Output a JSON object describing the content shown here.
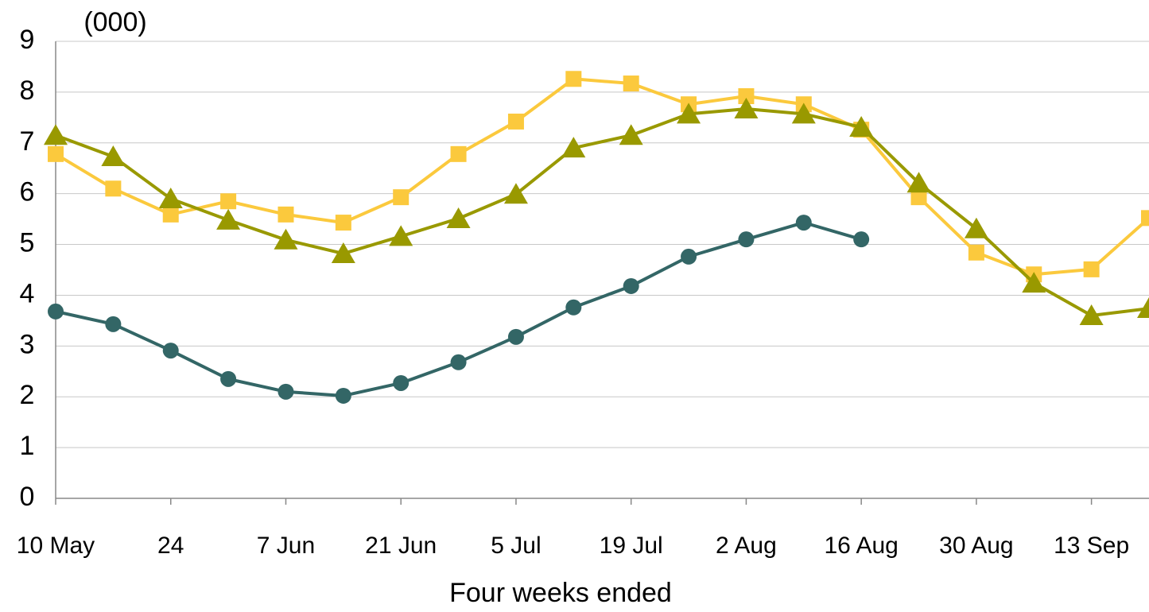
{
  "chart_data": {
    "type": "line",
    "title": "(000)",
    "xlabel": "Four weeks ended",
    "categories": [
      "10 May",
      null,
      "24",
      null,
      "7 Jun",
      null,
      "21 Jun",
      null,
      "5 Jul",
      null,
      "19 Jul",
      null,
      "2 Aug",
      null,
      "16 Aug",
      null,
      "30 Aug",
      null,
      "13 Sep",
      null
    ],
    "ylim": [
      0,
      9
    ],
    "yticks": [
      0,
      1,
      2,
      3,
      4,
      5,
      6,
      7,
      8,
      9
    ],
    "grid": true,
    "series": [
      {
        "color": "#fbc93d",
        "marker": "square",
        "values": [
          6.78,
          6.1,
          5.59,
          5.85,
          5.59,
          5.43,
          5.93,
          6.78,
          7.42,
          8.26,
          8.17,
          7.76,
          7.92,
          7.76,
          7.26,
          5.93,
          4.84,
          4.41,
          4.51,
          5.52
        ]
      },
      {
        "color": "#999900",
        "marker": "triangle",
        "values": [
          7.15,
          6.73,
          5.9,
          5.48,
          5.09,
          4.82,
          5.16,
          5.51,
          5.99,
          6.9,
          7.15,
          7.57,
          7.67,
          7.57,
          7.31,
          6.21,
          5.31,
          4.24,
          3.6,
          3.74
        ]
      },
      {
        "color": "#336666",
        "marker": "circle",
        "values": [
          3.68,
          3.43,
          2.91,
          2.35,
          2.1,
          2.02,
          2.27,
          2.68,
          3.18,
          3.76,
          4.18,
          4.76,
          5.1,
          5.43,
          5.1,
          null,
          null,
          null,
          null,
          null
        ]
      }
    ]
  }
}
